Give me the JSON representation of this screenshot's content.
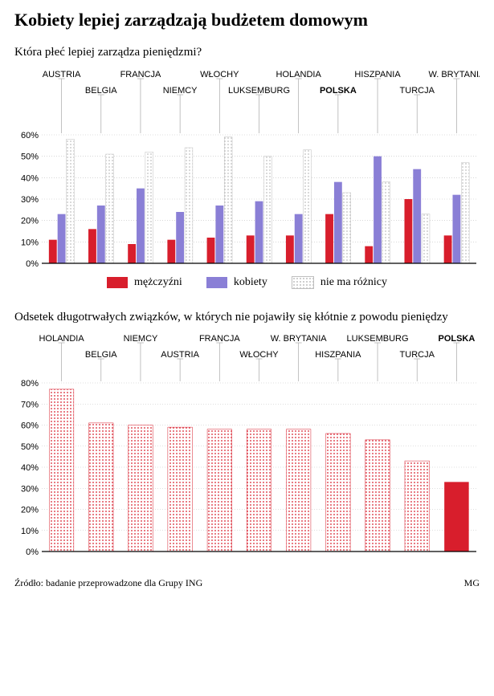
{
  "title": "Kobiety lepiej zarządzają budżetem domowym",
  "source": "Źródło: badanie przeprowadzone dla Grupy ING",
  "credit": "MG",
  "chart1": {
    "type": "bar-grouped",
    "subtitle": "Która płeć lepiej zarządza pieniędzmi?",
    "ylim": [
      0,
      60
    ],
    "ytick_step": 10,
    "ysuffix": "%",
    "background_color": "#ffffff",
    "axis_color": "#000000",
    "grid_color": "#bfbfbf",
    "label_fontsize": 11,
    "bold_category": "POLSKA",
    "categories": [
      "AUSTRIA",
      "BELGIA",
      "FRANCJA",
      "NIEMCY",
      "WŁOCHY",
      "LUKSEMBURG",
      "HOLANDIA",
      "POLSKA",
      "HISZPANIA",
      "TURCJA",
      "W. BRYTANIA"
    ],
    "series": [
      {
        "name": "mężczyźni",
        "color": "#d81e2c",
        "pattern": "solid",
        "values": [
          11,
          16,
          9,
          11,
          12,
          13,
          13,
          23,
          8,
          30,
          13
        ]
      },
      {
        "name": "kobiety",
        "color": "#8a7fd6",
        "pattern": "solid",
        "values": [
          23,
          27,
          35,
          24,
          27,
          29,
          23,
          38,
          50,
          44,
          32
        ]
      },
      {
        "name": "nie ma różnicy",
        "color": "#bfbfbf",
        "pattern": "dots",
        "values": [
          58,
          51,
          52,
          54,
          59,
          50,
          53,
          33,
          38,
          23,
          47
        ]
      }
    ]
  },
  "chart2": {
    "type": "bar",
    "subtitle": "Odsetek długotrwałych związków, w których nie pojawiły się kłótnie z powodu pieniędzy",
    "ylim": [
      0,
      80
    ],
    "ytick_step": 10,
    "ysuffix": "%",
    "background_color": "#ffffff",
    "axis_color": "#000000",
    "grid_color": "#bfbfbf",
    "label_fontsize": 11,
    "bold_category": "POLSKA",
    "highlight_category": "POLSKA",
    "highlight_color": "#d81e2c",
    "bar_color": "#d81e2c",
    "bar_pattern": "dots",
    "categories": [
      "HOLANDIA",
      "BELGIA",
      "NIEMCY",
      "AUSTRIA",
      "FRANCJA",
      "WŁOCHY",
      "W. BRYTANIA",
      "HISZPANIA",
      "LUKSEMBURG",
      "TURCJA",
      "POLSKA"
    ],
    "values": [
      77,
      61,
      60,
      59,
      58,
      58,
      58,
      56,
      53,
      43,
      33
    ]
  }
}
